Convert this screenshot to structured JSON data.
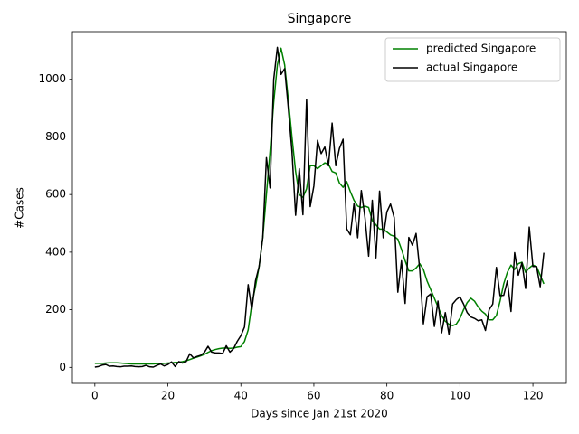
{
  "chart_data": {
    "type": "line",
    "title": "Singapore",
    "x_label": "Days since Jan 21st 2020",
    "y_label": "#Cases",
    "x": [
      0,
      1,
      2,
      3,
      4,
      5,
      6,
      7,
      8,
      9,
      10,
      11,
      12,
      13,
      14,
      15,
      16,
      17,
      18,
      19,
      20,
      21,
      22,
      23,
      24,
      25,
      26,
      27,
      28,
      29,
      30,
      31,
      32,
      33,
      34,
      35,
      36,
      37,
      38,
      39,
      40,
      41,
      42,
      43,
      44,
      45,
      46,
      47,
      48,
      49,
      50,
      51,
      52,
      53,
      54,
      55,
      56,
      57,
      58,
      59,
      60,
      61,
      62,
      63,
      64,
      65,
      66,
      67,
      68,
      69,
      70,
      71,
      72,
      73,
      74,
      75,
      76,
      77,
      78,
      79,
      80,
      81,
      82,
      83,
      84,
      85,
      86,
      87,
      88,
      89,
      90,
      91,
      92,
      93,
      94,
      95,
      96,
      97,
      98,
      99,
      100,
      101,
      102,
      103,
      104,
      105,
      106,
      107,
      108,
      109,
      110,
      111,
      112,
      113,
      114,
      115,
      116,
      117,
      118,
      119,
      120,
      121,
      122,
      123
    ],
    "series": [
      {
        "name": "predicted Singapore",
        "color": "#008000",
        "values": [
          14,
          14,
          14,
          15,
          16,
          16,
          16,
          15,
          14,
          13,
          12,
          12,
          12,
          12,
          12,
          12,
          12,
          13,
          13,
          14,
          15,
          16,
          17,
          18,
          20,
          23,
          27,
          32,
          36,
          40,
          45,
          52,
          58,
          62,
          65,
          67,
          67,
          66,
          67,
          70,
          72,
          90,
          130,
          220,
          280,
          350,
          450,
          600,
          750,
          920,
          1050,
          1108,
          1050,
          930,
          800,
          680,
          600,
          590,
          620,
          700,
          700,
          690,
          700,
          710,
          705,
          680,
          675,
          640,
          625,
          645,
          610,
          580,
          560,
          555,
          560,
          555,
          510,
          495,
          480,
          480,
          470,
          460,
          455,
          445,
          410,
          370,
          335,
          335,
          345,
          360,
          340,
          300,
          270,
          240,
          210,
          180,
          160,
          150,
          145,
          150,
          170,
          200,
          225,
          240,
          230,
          210,
          195,
          185,
          165,
          165,
          180,
          230,
          290,
          330,
          355,
          340,
          360,
          365,
          330,
          345,
          355,
          350,
          320,
          290
        ]
      },
      {
        "name": "actual Singapore",
        "color": "#000000",
        "values": [
          1,
          3,
          8,
          10,
          4,
          5,
          3,
          2,
          4,
          4,
          5,
          3,
          2,
          3,
          7,
          2,
          1,
          7,
          12,
          5,
          10,
          19,
          3,
          20,
          15,
          20,
          47,
          33,
          38,
          42,
          52,
          73,
          53,
          50,
          50,
          48,
          75,
          53,
          65,
          90,
          110,
          140,
          287,
          200,
          300,
          350,
          450,
          728,
          623,
          1000,
          1111,
          1017,
          1037,
          900,
          750,
          528,
          690,
          530,
          931,
          558,
          630,
          788,
          742,
          765,
          700,
          848,
          700,
          760,
          792,
          481,
          460,
          570,
          450,
          614,
          520,
          386,
          580,
          380,
          612,
          450,
          540,
          567,
          520,
          261,
          370,
          222,
          451,
          424,
          465,
          340,
          151,
          245,
          255,
          142,
          230,
          120,
          190,
          115,
          220,
          235,
          245,
          220,
          190,
          175,
          170,
          162,
          165,
          128,
          200,
          220,
          347,
          249,
          250,
          300,
          194,
          398,
          320,
          363,
          274,
          487,
          350,
          350,
          280,
          398
        ]
      }
    ],
    "xlim": [
      -6.15,
      129.15
    ],
    "ylim": [
      -55.5,
      1165.5
    ],
    "xticks": [
      0,
      20,
      40,
      60,
      80,
      100,
      120
    ],
    "yticks": [
      0,
      200,
      400,
      600,
      800,
      1000
    ],
    "grid": false,
    "legend": "upper right"
  }
}
